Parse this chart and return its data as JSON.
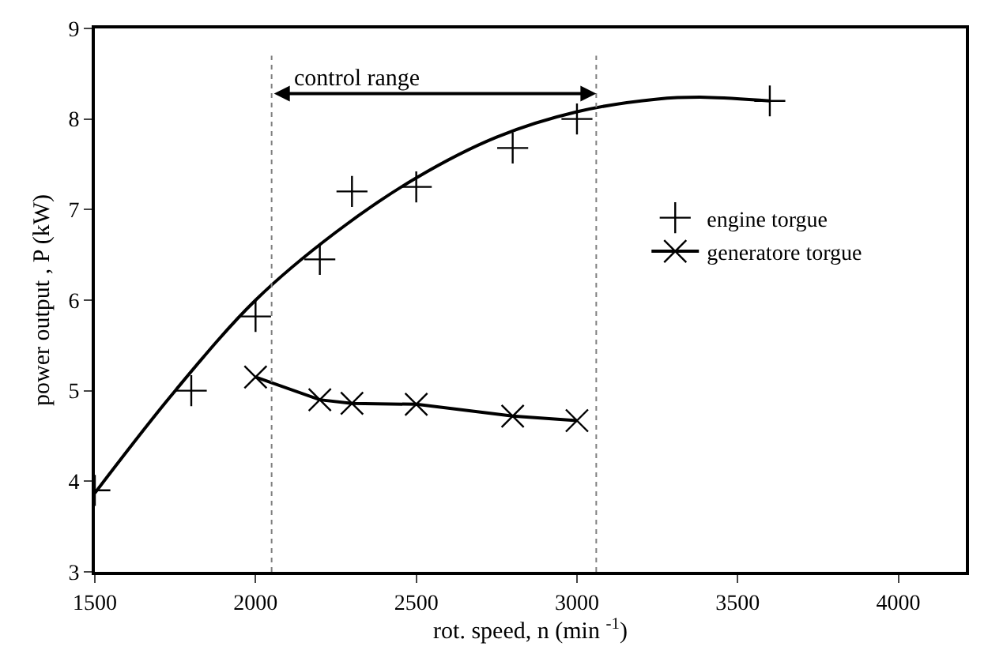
{
  "chart_data": {
    "type": "scatter",
    "xlabel": "rot. speed, n (min $^{-1}$)",
    "ylabel": "power output , P (kW)",
    "xlim": [
      1500,
      4210
    ],
    "xticks": [
      1500,
      2000,
      2500,
      3000,
      3500,
      4000
    ],
    "ylim": [
      3,
      9
    ],
    "yticks": [
      3,
      4,
      5,
      6,
      7,
      8,
      9
    ],
    "legend": "right",
    "series": [
      {
        "name": "engine torgue",
        "color": "#000000",
        "marker": "cross",
        "x": [
          1500,
          1800,
          2000,
          2200,
          2300,
          2500,
          2800,
          3000,
          3600
        ],
        "values": [
          3.9,
          5.0,
          5.82,
          6.45,
          7.2,
          7.25,
          7.68,
          8.0,
          8.2
        ]
      },
      {
        "name": "generatore torgue",
        "type": "line",
        "color": "#000000",
        "marker": "x",
        "x": [
          2000,
          2200,
          2300,
          2500,
          2800,
          3000
        ],
        "values": [
          5.15,
          4.9,
          4.86,
          4.85,
          4.72,
          4.67
        ]
      },
      {
        "type": "line",
        "color": "#000000",
        "marker": "none",
        "x": [
          1500,
          1750,
          2000,
          2250,
          2500,
          2750,
          3000,
          3250,
          3400,
          3600
        ],
        "values": [
          3.87,
          5.0,
          6.0,
          6.75,
          7.35,
          7.8,
          8.08,
          8.22,
          8.24,
          8.2
        ]
      }
    ],
    "ref_lines": [
      {
        "axis": "x",
        "value": 2050,
        "color": "#808080",
        "line_style": "dotted"
      },
      {
        "axis": "x",
        "value": 3060,
        "color": "#808080",
        "line_style": "dotted"
      }
    ],
    "annotations": [
      "control range"
    ]
  }
}
